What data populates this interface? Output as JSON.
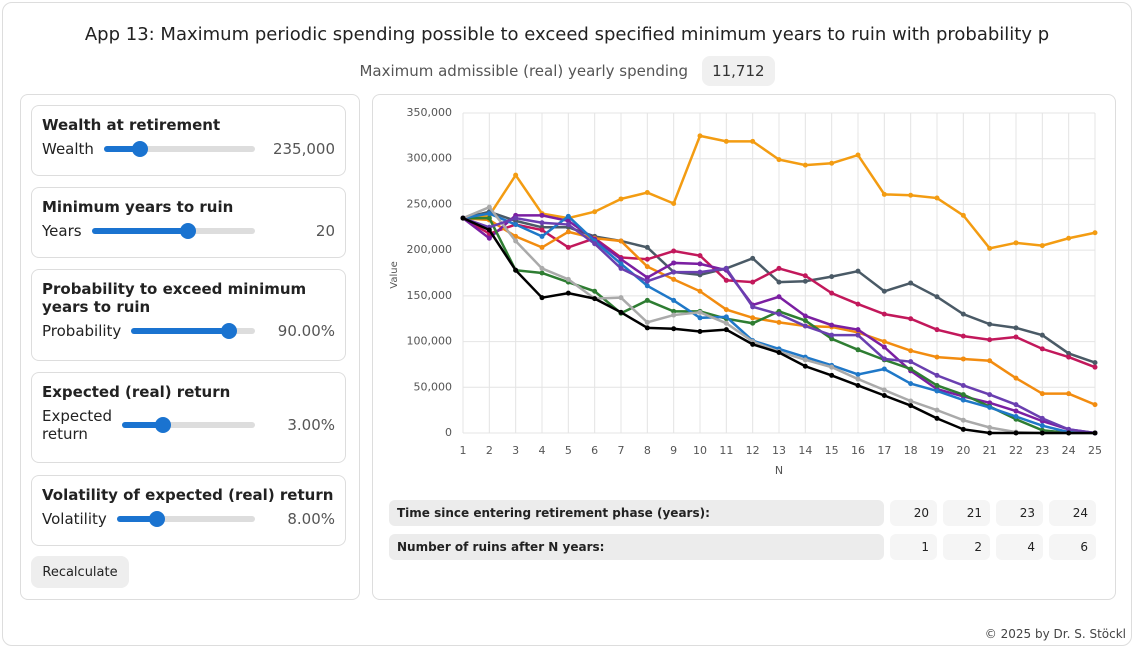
{
  "header": {
    "title": "App 13: Maximum periodic spending possible to exceed specified minimum years to ruin with probability p",
    "spending_label": "Maximum admissible (real) yearly spending",
    "spending_value": "11,712"
  },
  "controls": [
    {
      "title": "Wealth at retirement",
      "label": "Wealth",
      "value": "235,000"
    },
    {
      "title": "Minimum years to ruin",
      "label": "Years",
      "value": "20"
    },
    {
      "title": "Probability to exceed minimum years to ruin",
      "label": "Probability",
      "value": "90.00%"
    },
    {
      "title": "Expected (real) return",
      "label": "Expected return",
      "value": "3.00%"
    },
    {
      "title": "Volatility of expected (real) return",
      "label": "Volatility",
      "value": "8.00%"
    }
  ],
  "button": "Recalculate",
  "chart_data": {
    "type": "line",
    "x_label": "N",
    "y_label": "Value",
    "x": [
      1,
      2,
      3,
      4,
      5,
      6,
      7,
      8,
      9,
      10,
      11,
      12,
      13,
      14,
      15,
      16,
      17,
      18,
      19,
      20,
      21,
      22,
      23,
      24,
      25
    ],
    "xlim": [
      1,
      25
    ],
    "xticks": [
      1,
      2,
      3,
      4,
      5,
      6,
      7,
      8,
      9,
      10,
      11,
      12,
      13,
      14,
      15,
      16,
      17,
      18,
      19,
      20,
      21,
      22,
      23,
      24,
      25
    ],
    "ylim": [
      0,
      350000
    ],
    "yticks": [
      0,
      {
        "value": 50000,
        "label": "50,000"
      },
      {
        "value": 100000,
        "label": "100,000"
      },
      {
        "value": 150000,
        "label": "150,000"
      },
      {
        "value": 200000,
        "label": "200,000"
      },
      {
        "value": 250000,
        "label": "250,000"
      },
      {
        "value": 300000,
        "label": "300,000"
      },
      {
        "value": 350000,
        "label": "350,000"
      }
    ],
    "grid": true,
    "series": [
      {
        "color": "#f39c12",
        "values": [
          235000,
          238000,
          282000,
          240000,
          235000,
          242000,
          256000,
          263000,
          251000,
          325000,
          319000,
          319000,
          299000,
          293000,
          295000,
          304000,
          261000,
          260000,
          257000,
          238000,
          202000,
          208000,
          205000,
          213000,
          219000
        ]
      },
      {
        "color": "#4a5a66",
        "values": [
          235000,
          242000,
          232000,
          225000,
          225000,
          215000,
          210000,
          203000,
          176000,
          173000,
          180000,
          191000,
          165000,
          166000,
          171000,
          177000,
          155000,
          164000,
          149000,
          130000,
          119000,
          115000,
          107000,
          87000,
          77000
        ]
      },
      {
        "color": "#c2185b",
        "values": [
          235000,
          218000,
          228000,
          222000,
          203000,
          213000,
          192000,
          190000,
          199000,
          194000,
          167000,
          165000,
          180000,
          172000,
          153000,
          141000,
          130000,
          125000,
          113000,
          106000,
          102000,
          105000,
          92000,
          83000,
          72000
        ]
      },
      {
        "color": "#f28c10",
        "values": [
          235000,
          233000,
          215000,
          203000,
          220000,
          213000,
          210000,
          182000,
          168000,
          155000,
          135000,
          126000,
          121000,
          117000,
          116000,
          110000,
          100000,
          90000,
          83000,
          81000,
          79000,
          60000,
          43000,
          43000,
          31000
        ]
      },
      {
        "color": "#7b1fa2",
        "values": [
          235000,
          213000,
          238000,
          238000,
          232000,
          212000,
          190000,
          170000,
          186000,
          185000,
          178000,
          140000,
          149000,
          128000,
          118000,
          113000,
          94000,
          68000,
          48000,
          40000,
          33000,
          24000,
          13000,
          4000,
          0
        ]
      },
      {
        "color": "#2e7d32",
        "values": [
          235000,
          235000,
          178000,
          175000,
          165000,
          155000,
          131000,
          145000,
          133000,
          133000,
          125000,
          120000,
          133000,
          123000,
          103000,
          91000,
          80000,
          70000,
          52000,
          42000,
          29000,
          15000,
          3000,
          0,
          0
        ]
      },
      {
        "color": "#1f78c8",
        "values": [
          235000,
          240000,
          228000,
          215000,
          237000,
          210000,
          185000,
          161000,
          145000,
          126000,
          127000,
          101000,
          92000,
          83000,
          74000,
          64000,
          70000,
          54000,
          46000,
          36000,
          28000,
          18000,
          8000,
          1000,
          0
        ]
      },
      {
        "color": "#aaaaaa",
        "values": [
          235000,
          247000,
          210000,
          180000,
          168000,
          147000,
          148000,
          121000,
          129000,
          132000,
          120000,
          100000,
          89000,
          80000,
          72000,
          59000,
          47000,
          35000,
          25000,
          14000,
          6000,
          1000,
          0,
          0,
          0
        ]
      },
      {
        "color": "#6a3fb0",
        "values": [
          235000,
          225000,
          235000,
          230000,
          228000,
          207000,
          180000,
          166000,
          176000,
          176000,
          180000,
          138000,
          130000,
          117000,
          107000,
          107000,
          81000,
          78000,
          63000,
          52000,
          42000,
          31000,
          16000,
          4000,
          0
        ]
      },
      {
        "color": "#000000",
        "values": [
          235000,
          222000,
          178000,
          148000,
          153000,
          147000,
          132000,
          115000,
          114000,
          111000,
          113000,
          97000,
          88000,
          73000,
          63000,
          52000,
          41000,
          30000,
          16000,
          4000,
          0,
          0,
          0,
          0,
          0
        ]
      }
    ]
  },
  "table": {
    "rows": [
      [
        "Time since entering retirement phase (years):",
        20,
        21,
        23,
        24
      ],
      [
        "Number of ruins after N years:",
        1,
        2,
        4,
        6
      ]
    ]
  },
  "footer": "© 2025 by Dr. S. Stöckl"
}
